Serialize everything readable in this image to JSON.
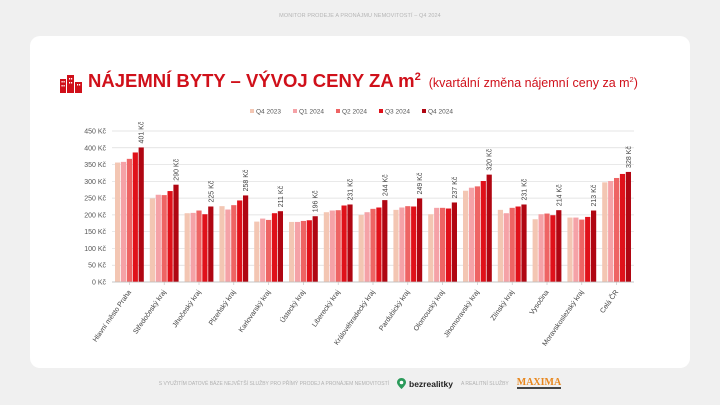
{
  "header": {
    "top_text": "MONITOR PRODEJE A PRONÁJMU NEMOVITOSTÍ – Q4 2024"
  },
  "title": {
    "main": "NÁJEMNÍ BYTY – VÝVOJ CENY ZA m",
    "main_sup": "2",
    "sub": "(kvartální změna nájemní ceny za m",
    "sub_sup": "2",
    "sub_end": ")",
    "icon": "buildings-icon"
  },
  "footer": {
    "text1": "S VYUŽITÍM DATOVÉ BÁZE NEJVĚTŠÍ SLUŽBY PRO PŘÍMÝ PRODEJ A PRONÁJEM NEMOVITOSTÍ",
    "brand1": "bezrealitky",
    "text2": "A REALITNÍ SLUŽBY",
    "brand2": "MAXIMA"
  },
  "chart_data": {
    "type": "bar",
    "ylim": [
      0,
      450
    ],
    "yticks": [
      0,
      50,
      100,
      150,
      200,
      250,
      300,
      350,
      400,
      450
    ],
    "ytick_suffix": " Kč",
    "grid": true,
    "legend": "top",
    "categories": [
      "Hlavní město Praha",
      "Středočeský kraj",
      "Jihočeský kraj",
      "Plzeňský kraj",
      "Karlovarský kraj",
      "Ústecký kraj",
      "Liberecký kraj",
      "Královéhradecký kraj",
      "Pardubický kraj",
      "Olomoucký kraj",
      "Jihomoravský kraj",
      "Zlínský kraj",
      "Vysočina",
      "Moravskoslezský kraj",
      "Celá ČR"
    ],
    "series": [
      {
        "name": "Q4 2023",
        "color": "#f3c6b3",
        "values": [
          356,
          249,
          205,
          226,
          180,
          179,
          208,
          200,
          215,
          202,
          272,
          215,
          187,
          192,
          297
        ]
      },
      {
        "name": "Q1 2024",
        "color": "#f5a2a7",
        "values": [
          358,
          260,
          206,
          216,
          189,
          179,
          213,
          208,
          222,
          221,
          281,
          205,
          202,
          192,
          301
        ]
      },
      {
        "name": "Q2 2024",
        "color": "#ee6464",
        "values": [
          367,
          259,
          213,
          229,
          185,
          182,
          214,
          218,
          226,
          221,
          285,
          221,
          204,
          186,
          310
        ]
      },
      {
        "name": "Q3 2024",
        "color": "#e0111a",
        "values": [
          386,
          271,
          202,
          243,
          205,
          184,
          228,
          222,
          225,
          219,
          301,
          225,
          199,
          194,
          322
        ]
      },
      {
        "name": "Q4 2024",
        "color": "#b00612",
        "values": [
          401,
          290,
          225,
          258,
          211,
          196,
          231,
          244,
          249,
          237,
          320,
          231,
          214,
          213,
          328
        ]
      }
    ],
    "data_labels": [
      "401 Kč",
      "290 Kč",
      "225 Kč",
      "258 Kč",
      "211 Kč",
      "196 Kč",
      "231 Kč",
      "244 Kč",
      "249 Kč",
      "237 Kč",
      "320 Kč",
      "231 Kč",
      "214 Kč",
      "213 Kč",
      "328 Kč"
    ]
  }
}
